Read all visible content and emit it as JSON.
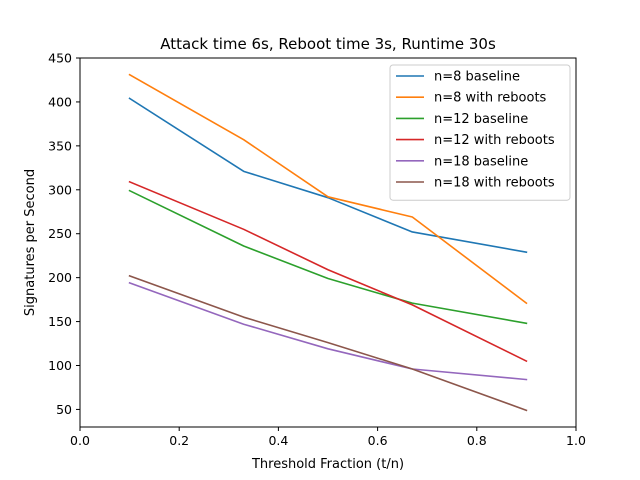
{
  "chart_data": {
    "type": "line",
    "title": "Attack time 6s, Reboot time 3s, Runtime 30s",
    "xlabel": "Threshold Fraction (t/n)",
    "ylabel": "Signatures per Second",
    "xlim": [
      0.0,
      1.0
    ],
    "ylim": [
      30,
      450
    ],
    "xticks": [
      0.0,
      0.2,
      0.4,
      0.6,
      0.8,
      1.0
    ],
    "xtick_labels": [
      "0.0",
      "0.2",
      "0.4",
      "0.6",
      "0.8",
      "1.0"
    ],
    "yticks": [
      50,
      100,
      150,
      200,
      250,
      300,
      350,
      400,
      450
    ],
    "ytick_labels": [
      "50",
      "100",
      "150",
      "200",
      "250",
      "300",
      "350",
      "400",
      "450"
    ],
    "grid": false,
    "legend_position": "top-right",
    "series": [
      {
        "name": "n=8 baseline",
        "color": "#1f77b4",
        "x": [
          0.1,
          0.33,
          0.5,
          0.67,
          0.9
        ],
        "y": [
          404,
          321,
          291,
          252,
          229
        ]
      },
      {
        "name": "n=8 with reboots",
        "color": "#ff7f0e",
        "x": [
          0.1,
          0.33,
          0.5,
          0.67,
          0.9
        ],
        "y": [
          431,
          357,
          292,
          269,
          171
        ]
      },
      {
        "name": "n=12 baseline",
        "color": "#2ca02c",
        "x": [
          0.1,
          0.33,
          0.5,
          0.67,
          0.9
        ],
        "y": [
          299,
          236,
          199,
          171,
          148
        ]
      },
      {
        "name": "n=12 with reboots",
        "color": "#d62728",
        "x": [
          0.1,
          0.33,
          0.5,
          0.67,
          0.9
        ],
        "y": [
          309,
          255,
          209,
          169,
          105
        ]
      },
      {
        "name": "n=18 baseline",
        "color": "#9467bd",
        "x": [
          0.1,
          0.33,
          0.5,
          0.67,
          0.9
        ],
        "y": [
          194,
          147,
          119,
          96,
          84
        ]
      },
      {
        "name": "n=18 with reboots",
        "color": "#8c564b",
        "x": [
          0.1,
          0.33,
          0.5,
          0.67,
          0.9
        ],
        "y": [
          202,
          155,
          126,
          96,
          49
        ]
      }
    ]
  }
}
